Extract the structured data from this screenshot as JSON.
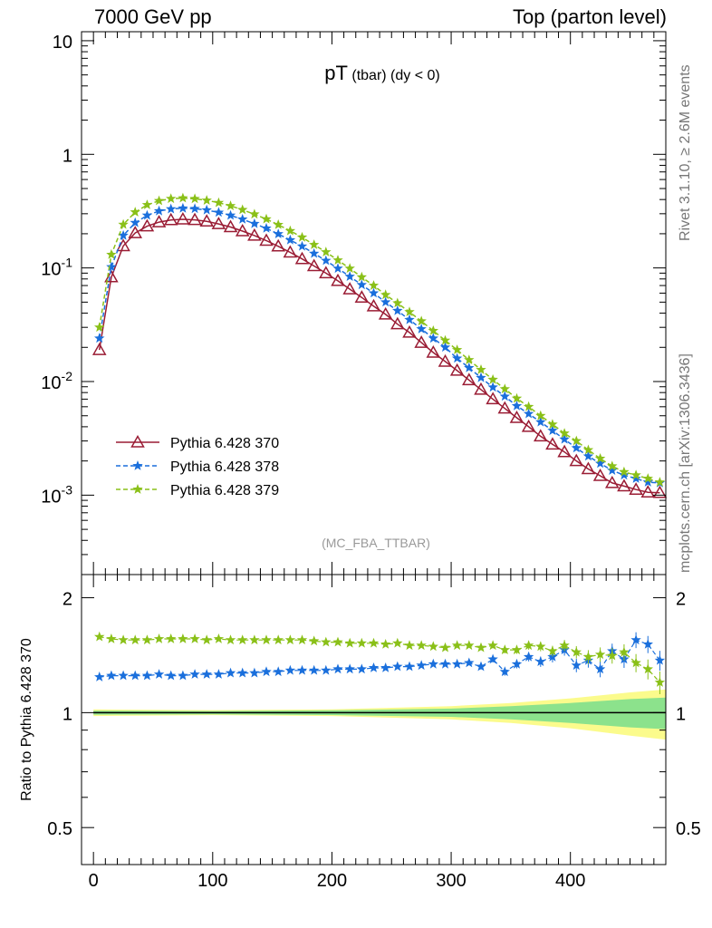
{
  "header": {
    "left": "7000 GeV pp",
    "right": "Top (parton level)"
  },
  "side_labels": {
    "rivet": "Rivet 3.1.10, ≥ 2.6M events",
    "mcplots": "mcplots.cern.ch [arXiv:1306.3436]"
  },
  "colors": {
    "s370": "#9a1c34",
    "s378": "#1a6fdc",
    "s379": "#8ac018",
    "band_inner": "#8ce28c",
    "band_outer": "#fbfb8c"
  },
  "chart_data": [
    {
      "type": "line",
      "title": "pT (tbar) (dy < 0)",
      "title_main": "pT",
      "title_sub": "(tbar) (dy < 0)",
      "analysis_tag": "(MC_FBA_TTBAR)",
      "xlabel": "",
      "ylabel": "",
      "xlim": [
        -10,
        480
      ],
      "ylim": [
        0.0002,
        12
      ],
      "yscale": "log",
      "y_tick_labels": [
        "10",
        "1",
        "10^-1",
        "10^-2",
        "10^-3"
      ],
      "legend_position": "middle-left",
      "series": [
        {
          "name": "Pythia 6.428 370",
          "marker": "open-triangle",
          "line": "solid",
          "x": [
            5,
            15,
            25,
            35,
            45,
            55,
            65,
            75,
            85,
            95,
            105,
            115,
            125,
            135,
            145,
            155,
            165,
            175,
            185,
            195,
            205,
            215,
            225,
            235,
            245,
            255,
            265,
            275,
            285,
            295,
            305,
            315,
            325,
            335,
            345,
            355,
            365,
            375,
            385,
            395,
            405,
            415,
            425,
            435,
            445,
            455,
            465,
            475
          ],
          "y": [
            0.019,
            0.083,
            0.156,
            0.203,
            0.233,
            0.253,
            0.264,
            0.268,
            0.265,
            0.257,
            0.244,
            0.229,
            0.211,
            0.193,
            0.174,
            0.155,
            0.137,
            0.12,
            0.104,
            0.09,
            0.077,
            0.065,
            0.055,
            0.046,
            0.039,
            0.032,
            0.027,
            0.022,
            0.018,
            0.015,
            0.0125,
            0.0103,
            0.0085,
            0.007,
            0.0058,
            0.0048,
            0.004,
            0.0033,
            0.0028,
            0.0024,
            0.002,
            0.0017,
            0.00148,
            0.00128,
            0.0012,
            0.00112,
            0.00106,
            0.00105
          ]
        },
        {
          "name": "Pythia 6.428 378",
          "marker": "star",
          "line": "dashed",
          "x": [
            5,
            15,
            25,
            35,
            45,
            55,
            65,
            75,
            85,
            95,
            105,
            115,
            125,
            135,
            145,
            155,
            165,
            175,
            185,
            195,
            205,
            215,
            225,
            235,
            245,
            255,
            265,
            275,
            285,
            295,
            305,
            315,
            325,
            335,
            345,
            355,
            365,
            375,
            385,
            395,
            405,
            415,
            425,
            435,
            445,
            455,
            465,
            475
          ],
          "y": [
            0.024,
            0.102,
            0.193,
            0.25,
            0.29,
            0.317,
            0.33,
            0.335,
            0.332,
            0.323,
            0.308,
            0.29,
            0.268,
            0.245,
            0.223,
            0.199,
            0.176,
            0.155,
            0.134,
            0.116,
            0.099,
            0.084,
            0.071,
            0.06,
            0.05,
            0.042,
            0.035,
            0.029,
            0.024,
            0.02,
            0.016,
            0.0132,
            0.0108,
            0.0089,
            0.0074,
            0.0061,
            0.0052,
            0.0044,
            0.0037,
            0.0031,
            0.0026,
            0.0022,
            0.0019,
            0.00165,
            0.0015,
            0.0014,
            0.0013,
            0.00128
          ]
        },
        {
          "name": "Pythia 6.428 379",
          "marker": "star",
          "line": "dashed",
          "x": [
            5,
            15,
            25,
            35,
            45,
            55,
            65,
            75,
            85,
            95,
            105,
            115,
            125,
            135,
            145,
            155,
            165,
            175,
            185,
            195,
            205,
            215,
            225,
            235,
            245,
            255,
            265,
            275,
            285,
            295,
            305,
            315,
            325,
            335,
            345,
            355,
            365,
            375,
            385,
            395,
            405,
            415,
            425,
            435,
            445,
            455,
            465,
            475
          ],
          "y": [
            0.03,
            0.131,
            0.241,
            0.31,
            0.359,
            0.39,
            0.407,
            0.412,
            0.406,
            0.393,
            0.375,
            0.352,
            0.325,
            0.297,
            0.269,
            0.24,
            0.212,
            0.186,
            0.16,
            0.138,
            0.117,
            0.099,
            0.083,
            0.07,
            0.058,
            0.049,
            0.041,
            0.034,
            0.028,
            0.023,
            0.019,
            0.0155,
            0.0127,
            0.0104,
            0.0086,
            0.0071,
            0.006,
            0.005,
            0.0042,
            0.0035,
            0.003,
            0.0025,
            0.0021,
            0.0018,
            0.0016,
            0.0015,
            0.0014,
            0.0013
          ]
        }
      ]
    },
    {
      "type": "line",
      "title": "",
      "xlabel": "",
      "ylabel": "Ratio to Pythia 6.428 370",
      "xlim": [
        -10,
        480
      ],
      "ylim": [
        0.4,
        2.3
      ],
      "yscale": "log",
      "x_tick_labels": [
        "0",
        "100",
        "200",
        "300",
        "400"
      ],
      "y_tick_labels": [
        "2",
        "1",
        "0.5"
      ],
      "reference_line": 1,
      "band_x": [
        0,
        100,
        200,
        300,
        350,
        400,
        450,
        480
      ],
      "band_inner_halfwidth": [
        0.012,
        0.01,
        0.014,
        0.025,
        0.04,
        0.06,
        0.085,
        0.095
      ],
      "band_outer_halfwidth": [
        0.02,
        0.015,
        0.02,
        0.04,
        0.06,
        0.09,
        0.13,
        0.15
      ],
      "series": [
        {
          "name": "Pythia 6.428 378",
          "x": [
            5,
            15,
            25,
            35,
            45,
            55,
            65,
            75,
            85,
            95,
            105,
            115,
            125,
            135,
            145,
            155,
            165,
            175,
            185,
            195,
            205,
            215,
            225,
            235,
            245,
            255,
            265,
            275,
            285,
            295,
            305,
            315,
            325,
            335,
            345,
            355,
            365,
            375,
            385,
            395,
            405,
            415,
            425,
            435,
            445,
            455,
            465,
            475
          ],
          "y": [
            1.24,
            1.25,
            1.25,
            1.25,
            1.25,
            1.26,
            1.25,
            1.25,
            1.26,
            1.26,
            1.26,
            1.27,
            1.27,
            1.27,
            1.28,
            1.28,
            1.29,
            1.29,
            1.29,
            1.29,
            1.3,
            1.3,
            1.3,
            1.31,
            1.31,
            1.32,
            1.32,
            1.33,
            1.34,
            1.34,
            1.34,
            1.35,
            1.32,
            1.38,
            1.28,
            1.34,
            1.4,
            1.36,
            1.4,
            1.46,
            1.33,
            1.37,
            1.3,
            1.45,
            1.38,
            1.55,
            1.51,
            1.37
          ]
        },
        {
          "name": "Pythia 6.428 379",
          "x": [
            5,
            15,
            25,
            35,
            45,
            55,
            65,
            75,
            85,
            95,
            105,
            115,
            125,
            135,
            145,
            155,
            165,
            175,
            185,
            195,
            205,
            215,
            225,
            235,
            245,
            255,
            265,
            275,
            285,
            295,
            305,
            315,
            325,
            335,
            345,
            355,
            365,
            375,
            385,
            395,
            405,
            415,
            425,
            435,
            445,
            455,
            465,
            475
          ],
          "y": [
            1.58,
            1.56,
            1.55,
            1.55,
            1.55,
            1.56,
            1.56,
            1.56,
            1.56,
            1.55,
            1.56,
            1.55,
            1.55,
            1.55,
            1.55,
            1.55,
            1.55,
            1.55,
            1.54,
            1.53,
            1.53,
            1.52,
            1.52,
            1.52,
            1.51,
            1.52,
            1.5,
            1.5,
            1.49,
            1.48,
            1.5,
            1.5,
            1.48,
            1.5,
            1.46,
            1.46,
            1.5,
            1.49,
            1.45,
            1.5,
            1.44,
            1.4,
            1.42,
            1.41,
            1.44,
            1.35,
            1.3,
            1.2
          ]
        }
      ]
    }
  ]
}
